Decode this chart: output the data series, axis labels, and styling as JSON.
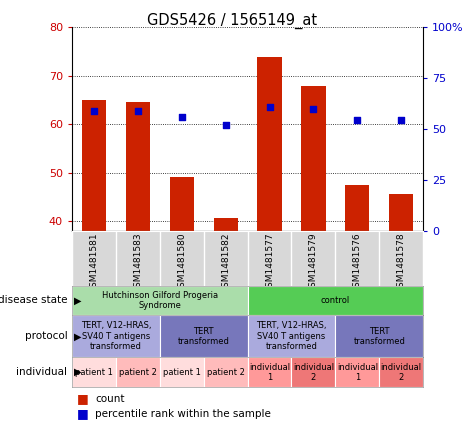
{
  "title": "GDS5426 / 1565149_at",
  "samples": [
    "GSM1481581",
    "GSM1481583",
    "GSM1481580",
    "GSM1481582",
    "GSM1481577",
    "GSM1481579",
    "GSM1481576",
    "GSM1481578"
  ],
  "counts": [
    65.0,
    64.5,
    49.0,
    40.5,
    74.0,
    68.0,
    47.5,
    45.5
  ],
  "percentiles_right": [
    59,
    59,
    56,
    52,
    61,
    60,
    54.5,
    54.5
  ],
  "ylim_left": [
    38,
    80
  ],
  "ylim_right": [
    0,
    100
  ],
  "yticks_left": [
    40,
    50,
    60,
    70,
    80
  ],
  "yticks_right": [
    0,
    25,
    50,
    75,
    100
  ],
  "bar_color": "#cc2200",
  "dot_color": "#0000cc",
  "chart_bg": "#ffffff",
  "sample_area_bg": "#d8d8d8",
  "disease_state_groups": [
    {
      "label": "Hutchinson Gilford Progeria\nSyndrome",
      "span": [
        0,
        4
      ],
      "color": "#aaddaa"
    },
    {
      "label": "control",
      "span": [
        4,
        8
      ],
      "color": "#55cc55"
    }
  ],
  "protocol_groups": [
    {
      "label": "TERT, V12-HRAS,\nSV40 T antigens\ntransformed",
      "span": [
        0,
        2
      ],
      "color": "#aaaadd"
    },
    {
      "label": "TERT\ntransformed",
      "span": [
        2,
        4
      ],
      "color": "#7777bb"
    },
    {
      "label": "TERT, V12-HRAS,\nSV40 T antigens\ntransformed",
      "span": [
        4,
        6
      ],
      "color": "#aaaadd"
    },
    {
      "label": "TERT\ntransformed",
      "span": [
        6,
        8
      ],
      "color": "#7777bb"
    }
  ],
  "individual_groups": [
    {
      "label": "patient 1",
      "span": [
        0,
        1
      ],
      "color": "#ffdddd"
    },
    {
      "label": "patient 2",
      "span": [
        1,
        2
      ],
      "color": "#ffbbbb"
    },
    {
      "label": "patient 1",
      "span": [
        2,
        3
      ],
      "color": "#ffdddd"
    },
    {
      "label": "patient 2",
      "span": [
        3,
        4
      ],
      "color": "#ffbbbb"
    },
    {
      "label": "individual\n1",
      "span": [
        4,
        5
      ],
      "color": "#ff9999"
    },
    {
      "label": "individual\n2",
      "span": [
        5,
        6
      ],
      "color": "#ee7777"
    },
    {
      "label": "individual\n1",
      "span": [
        6,
        7
      ],
      "color": "#ff9999"
    },
    {
      "label": "individual\n2",
      "span": [
        7,
        8
      ],
      "color": "#ee7777"
    }
  ],
  "row_labels": [
    "disease state",
    "protocol",
    "individual"
  ],
  "left_axis_color": "#cc0000",
  "right_axis_color": "#0000cc"
}
